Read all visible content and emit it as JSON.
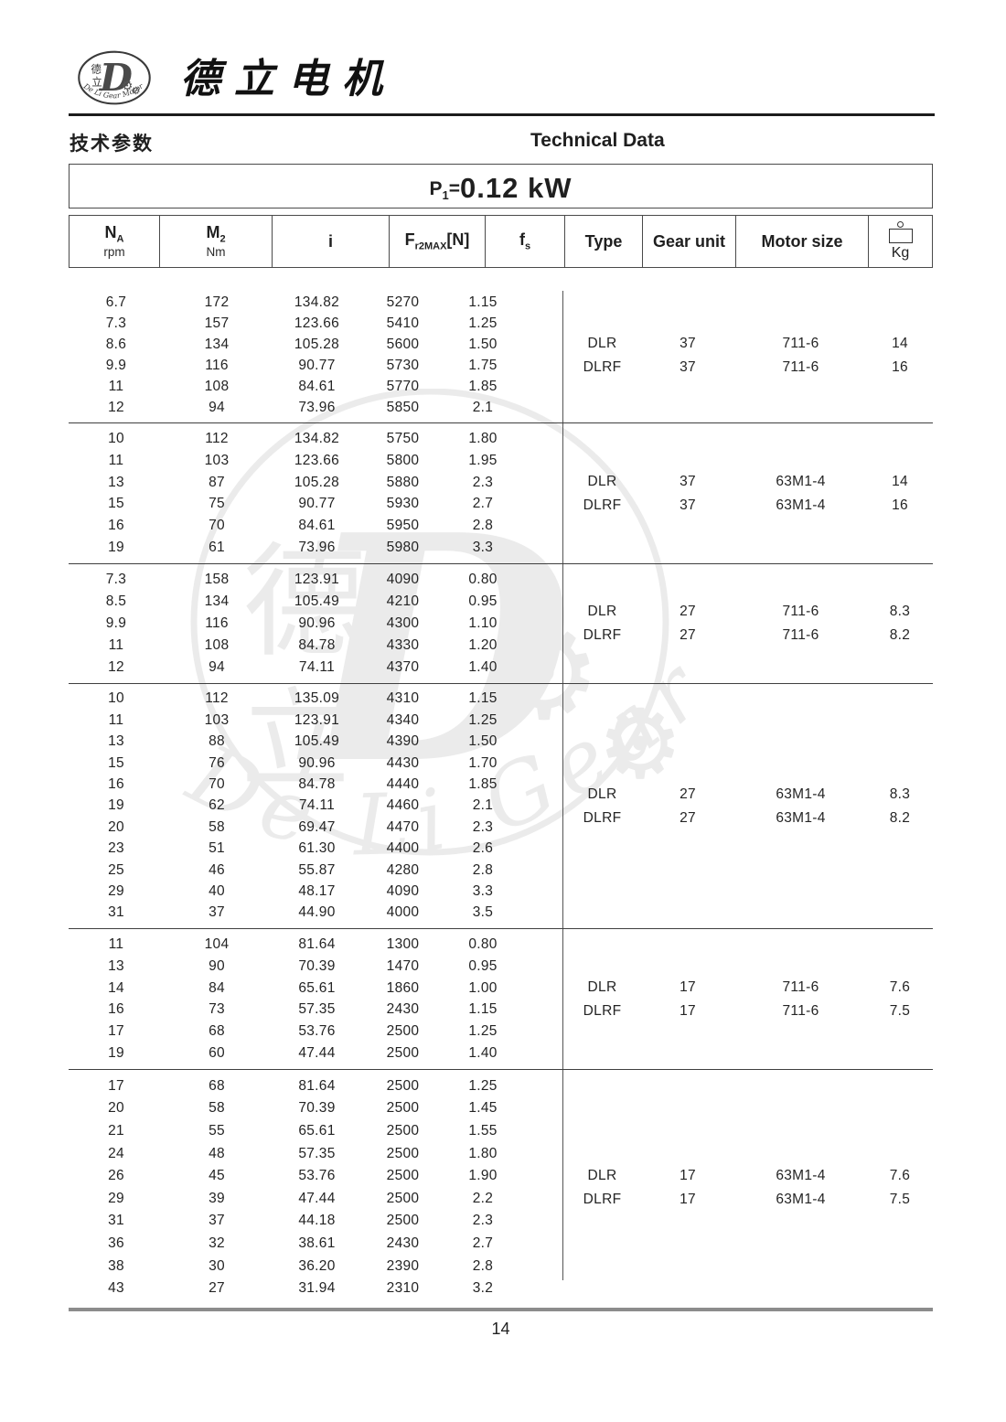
{
  "header": {
    "brand_cn": "德立电机",
    "logo": {
      "char_top": "德",
      "char_bottom": "立",
      "letter": "D",
      "gear_glyph": "⚙",
      "ring_text": "De Li Gear Motor"
    },
    "section_title_cn": "技术参数",
    "section_title_en": "Technical Data"
  },
  "power_title": {
    "symbol": "P",
    "subscript": "1",
    "equals": "=",
    "value": "0.12 kW"
  },
  "table_header": {
    "na_main": "N",
    "na_sub": "A",
    "na_unit": "rpm",
    "m2_main": "M",
    "m2_sub": "2",
    "m2_unit": "Nm",
    "ratio": "i",
    "fr_main": "F",
    "fr_sub": "r2MAX",
    "fr_bracket": "[N]",
    "fs_main": "f",
    "fs_sub": "s",
    "type": "Type",
    "gear_unit": "Gear unit",
    "motor_size": "Motor size",
    "kg": "Kg",
    "kg_icon": "weight-icon"
  },
  "watermark": {
    "char_top": "德",
    "char_bottom": "立",
    "letter": "D",
    "gear_glyph": "⚙",
    "ring_text": "De Li Gear Motor"
  },
  "colors": {
    "text": "#1f1f1f",
    "table_line": "#4a4a4a",
    "footer_rule": "#8c8c8c",
    "watermark_gray": "#8a8a8a"
  },
  "sections": [
    {
      "rows": [
        [
          "6.7",
          "172",
          "134.82",
          "5270",
          "1.15"
        ],
        [
          "7.3",
          "157",
          "123.66",
          "5410",
          "1.25"
        ],
        [
          "8.6",
          "134",
          "105.28",
          "5600",
          "1.50"
        ],
        [
          "9.9",
          "116",
          "90.77",
          "5730",
          "1.75"
        ],
        [
          "11",
          "108",
          "84.61",
          "5770",
          "1.85"
        ],
        [
          "12",
          "94",
          "73.96",
          "5850",
          "2.1"
        ]
      ],
      "variants": [
        {
          "type": "DLR",
          "gear_unit": "37",
          "motor_size": "711-6",
          "weight": "14"
        },
        {
          "type": "DLRF",
          "gear_unit": "37",
          "motor_size": "711-6",
          "weight": "16"
        }
      ]
    },
    {
      "rows": [
        [
          "10",
          "112",
          "134.82",
          "5750",
          "1.80"
        ],
        [
          "11",
          "103",
          "123.66",
          "5800",
          "1.95"
        ],
        [
          "13",
          "87",
          "105.28",
          "5880",
          "2.3"
        ],
        [
          "15",
          "75",
          "90.77",
          "5930",
          "2.7"
        ],
        [
          "16",
          "70",
          "84.61",
          "5950",
          "2.8"
        ],
        [
          "19",
          "61",
          "73.96",
          "5980",
          "3.3"
        ]
      ],
      "variants": [
        {
          "type": "DLR",
          "gear_unit": "37",
          "motor_size": "63M1-4",
          "weight": "14"
        },
        {
          "type": "DLRF",
          "gear_unit": "37",
          "motor_size": "63M1-4",
          "weight": "16"
        }
      ]
    },
    {
      "rows": [
        [
          "7.3",
          "158",
          "123.91",
          "4090",
          "0.80"
        ],
        [
          "8.5",
          "134",
          "105.49",
          "4210",
          "0.95"
        ],
        [
          "9.9",
          "116",
          "90.96",
          "4300",
          "1.10"
        ],
        [
          "11",
          "108",
          "84.78",
          "4330",
          "1.20"
        ],
        [
          "12",
          "94",
          "74.11",
          "4370",
          "1.40"
        ]
      ],
      "variants": [
        {
          "type": "DLR",
          "gear_unit": "27",
          "motor_size": "711-6",
          "weight": "8.3"
        },
        {
          "type": "DLRF",
          "gear_unit": "27",
          "motor_size": "711-6",
          "weight": "8.2"
        }
      ]
    },
    {
      "rows": [
        [
          "10",
          "112",
          "135.09",
          "4310",
          "1.15"
        ],
        [
          "11",
          "103",
          "123.91",
          "4340",
          "1.25"
        ],
        [
          "13",
          "88",
          "105.49",
          "4390",
          "1.50"
        ],
        [
          "15",
          "76",
          "90.96",
          "4430",
          "1.70"
        ],
        [
          "16",
          "70",
          "84.78",
          "4440",
          "1.85"
        ],
        [
          "19",
          "62",
          "74.11",
          "4460",
          "2.1"
        ],
        [
          "20",
          "58",
          "69.47",
          "4470",
          "2.3"
        ],
        [
          "23",
          "51",
          "61.30",
          "4400",
          "2.6"
        ],
        [
          "25",
          "46",
          "55.87",
          "4280",
          "2.8"
        ],
        [
          "29",
          "40",
          "48.17",
          "4090",
          "3.3"
        ],
        [
          "31",
          "37",
          "44.90",
          "4000",
          "3.5"
        ]
      ],
      "variants": [
        {
          "type": "DLR",
          "gear_unit": "27",
          "motor_size": "63M1-4",
          "weight": "8.3"
        },
        {
          "type": "DLRF",
          "gear_unit": "27",
          "motor_size": "63M1-4",
          "weight": "8.2"
        }
      ]
    },
    {
      "rows": [
        [
          "11",
          "104",
          "81.64",
          "1300",
          "0.80"
        ],
        [
          "13",
          "90",
          "70.39",
          "1470",
          "0.95"
        ],
        [
          "14",
          "84",
          "65.61",
          "1860",
          "1.00"
        ],
        [
          "16",
          "73",
          "57.35",
          "2430",
          "1.15"
        ],
        [
          "17",
          "68",
          "53.76",
          "2500",
          "1.25"
        ],
        [
          "19",
          "60",
          "47.44",
          "2500",
          "1.40"
        ]
      ],
      "variants": [
        {
          "type": "DLR",
          "gear_unit": "17",
          "motor_size": "711-6",
          "weight": "7.6"
        },
        {
          "type": "DLRF",
          "gear_unit": "17",
          "motor_size": "711-6",
          "weight": "7.5"
        }
      ]
    },
    {
      "rows": [
        [
          "17",
          "68",
          "81.64",
          "2500",
          "1.25"
        ],
        [
          "20",
          "58",
          "70.39",
          "2500",
          "1.45"
        ],
        [
          "21",
          "55",
          "65.61",
          "2500",
          "1.55"
        ],
        [
          "24",
          "48",
          "57.35",
          "2500",
          "1.80"
        ],
        [
          "26",
          "45",
          "53.76",
          "2500",
          "1.90"
        ],
        [
          "29",
          "39",
          "47.44",
          "2500",
          "2.2"
        ],
        [
          "31",
          "37",
          "44.18",
          "2500",
          "2.3"
        ],
        [
          "36",
          "32",
          "38.61",
          "2430",
          "2.7"
        ],
        [
          "38",
          "30",
          "36.20",
          "2390",
          "2.8"
        ],
        [
          "43",
          "27",
          "31.94",
          "2310",
          "3.2"
        ]
      ],
      "variants": [
        {
          "type": "DLR",
          "gear_unit": "17",
          "motor_size": "63M1-4",
          "weight": "7.6"
        },
        {
          "type": "DLRF",
          "gear_unit": "17",
          "motor_size": "63M1-4",
          "weight": "7.5"
        }
      ]
    }
  ],
  "footer": {
    "page_number": "14"
  }
}
